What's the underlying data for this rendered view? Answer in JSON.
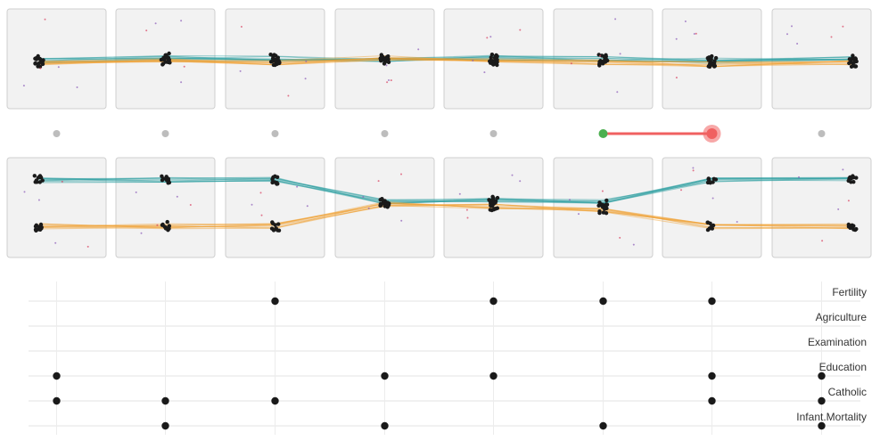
{
  "variables": [
    "Fertility",
    "Agriculture",
    "Examination",
    "Education",
    "Catholic",
    "Infant.Mortality"
  ],
  "colors": {
    "teal": "#2b9ea0",
    "orange": "#f0a030",
    "green": "#4caf50",
    "red": "#f06060",
    "gray_dot": "#bdbdbd",
    "outlier_red": "#d94060",
    "outlier_purple": "#8a5ab8",
    "point": "#1a1a1a"
  },
  "slider": {
    "active_start_column": 5,
    "active_end_column": 6
  },
  "matrix": [
    [
      false,
      false,
      false,
      true,
      true,
      false
    ],
    [
      false,
      false,
      false,
      false,
      true,
      true
    ],
    [
      true,
      false,
      false,
      false,
      true,
      false
    ],
    [
      false,
      false,
      false,
      true,
      false,
      true
    ],
    [
      true,
      false,
      false,
      true,
      false,
      false
    ],
    [
      true,
      false,
      false,
      false,
      false,
      true
    ],
    [
      true,
      false,
      false,
      true,
      true,
      false
    ],
    [
      false,
      false,
      false,
      true,
      true,
      true
    ]
  ]
}
